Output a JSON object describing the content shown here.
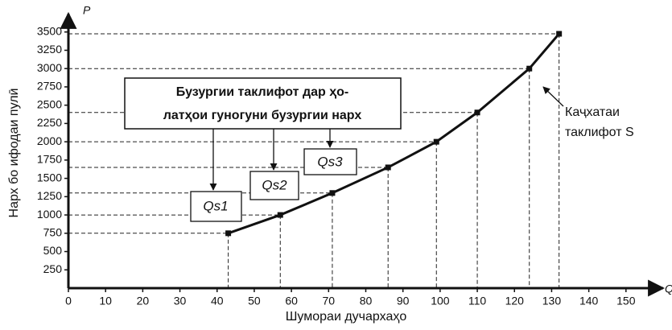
{
  "chart_data": {
    "type": "line",
    "y_label_axis": "P",
    "x_label_axis": "Q",
    "y_label": "Нарх бо ифодаи пулӣ",
    "x_label": "Шумораи дучархаҳо",
    "annotation_box": [
      "Бузургии таклифот дар ҳо-",
      "латҳои гуногуни бузургии нарх"
    ],
    "quantity_labels": [
      "Qs1",
      "Qs2",
      "Qs3"
    ],
    "curve_label": [
      "Каҷхатаи",
      "таклифот S"
    ],
    "x": [
      43,
      57,
      71,
      86,
      99,
      110,
      124,
      132
    ],
    "series": [
      {
        "color": "#111111",
        "values": [
          750,
          1000,
          1300,
          1650,
          2000,
          2400,
          3000,
          3475
        ]
      }
    ],
    "xlim": [
      0,
      160
    ],
    "xticks": [
      0,
      10,
      20,
      30,
      40,
      50,
      60,
      70,
      80,
      90,
      100,
      110,
      120,
      130,
      140,
      150
    ],
    "ylim": [
      0,
      3750
    ],
    "yticks": [
      250,
      500,
      750,
      1000,
      1250,
      1500,
      1750,
      2000,
      2250,
      2500,
      2750,
      3000,
      3250,
      3500
    ]
  }
}
